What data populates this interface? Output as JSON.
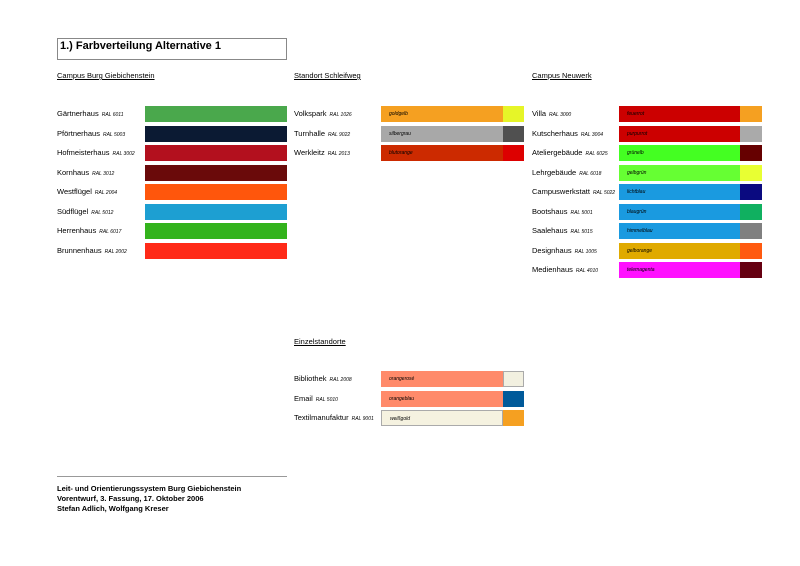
{
  "title": "1.) Farbverteilung Alternative 1",
  "sections": [
    {
      "heading": "Campus Burg Giebichenstein",
      "items": [
        {
          "name": "Gärtnerhaus",
          "ral": "RAL 6011",
          "color": "#4aa84c"
        },
        {
          "name": "Pförtnerhaus",
          "ral": "RAL 5003",
          "color": "#0b1a33"
        },
        {
          "name": "Hofmeisterhaus",
          "ral": "RAL 3002",
          "color": "#b3101e"
        },
        {
          "name": "Kornhaus",
          "ral": "RAL 3012",
          "color": "#6a0a0a"
        },
        {
          "name": "Westflügel",
          "ral": "RAL 2004",
          "color": "#ff560c"
        },
        {
          "name": "Südflügel",
          "ral": "RAL 5012",
          "color": "#1d9fd2"
        },
        {
          "name": "Herrenhaus",
          "ral": "RAL 6017",
          "color": "#33b31c"
        },
        {
          "name": "Brunnenhaus",
          "ral": "RAL 2002",
          "color": "#ff2a18"
        }
      ]
    },
    {
      "heading": "Standort Schleifweg",
      "items": [
        {
          "name": "Volkspark",
          "ral": "RAL 1026",
          "color": "#f5a021",
          "label": "goldgelb",
          "accent": "#e6f528"
        },
        {
          "name": "Turnhalle",
          "ral": "RAL 9022",
          "color": "#a8a8a8",
          "label": "silbergrau",
          "accent": "#505050"
        },
        {
          "name": "Werkleitz",
          "ral": "RAL 2013",
          "color": "#cc2a00",
          "label": "blutorange",
          "accent": "#dd0000"
        }
      ]
    },
    {
      "heading": "Campus Neuwerk",
      "items": [
        {
          "name": "Villa",
          "ral": "RAL 3000",
          "color": "#cc0000",
          "label": "feuerrot",
          "accent": "#f5a021"
        },
        {
          "name": "Kutscherhaus",
          "ral": "RAL 3004",
          "color": "#cc0000",
          "label": "purpurrot",
          "accent": "#aaaaaa"
        },
        {
          "name": "Ateliergebäude",
          "ral": "RAL 6025",
          "color": "#44ff22",
          "label": "grünelb",
          "accent": "#660000"
        },
        {
          "name": "Lehrgebäude",
          "ral": "RAL 6018",
          "color": "#66ff33",
          "label": "gelbgrün",
          "accent": "#e8ff33"
        },
        {
          "name": "Campuswerkstatt",
          "ral": "RAL 5022",
          "color": "#1a9ae0",
          "label": "lichtblau",
          "accent": "#0a0a80"
        },
        {
          "name": "Bootshaus",
          "ral": "RAL 5001",
          "color": "#1a9ae0",
          "label": "blaugrün",
          "accent": "#10b060"
        },
        {
          "name": "Saalehaus",
          "ral": "RAL 5015",
          "color": "#1a9ae0",
          "label": "himmelblau",
          "accent": "#808080"
        },
        {
          "name": "Designhaus",
          "ral": "RAL 1005",
          "color": "#e0aa00",
          "label": "gelborange",
          "accent": "#ff5a10"
        },
        {
          "name": "Medienhaus",
          "ral": "RAL 4010",
          "color": "#ff10ff",
          "label": "telemagenta",
          "accent": "#660011"
        }
      ]
    },
    {
      "heading": "Einzelstandorte",
      "items": [
        {
          "name": "Bibliothek",
          "ral": "RAL 2008",
          "color": "#ff8a6a",
          "label": "orangerosé",
          "accent": "#f2f0e0"
        },
        {
          "name": "Email",
          "ral": "RAL 5010",
          "color": "#ff8a6a",
          "label": "orangeblau",
          "accent": "#005a9a"
        },
        {
          "name": "Textilmanufaktur",
          "ral": "RAL 9001",
          "color": "#f5f2e0",
          "label": "weißgold",
          "accent": "#f5a021"
        }
      ]
    }
  ],
  "footer": [
    "Leit- und Orientierungssystem Burg Giebichenstein",
    "Vorentwurf, 3. Fassung, 17. Oktober 2006",
    "Stefan Adlich, Wolfgang Kreser"
  ]
}
